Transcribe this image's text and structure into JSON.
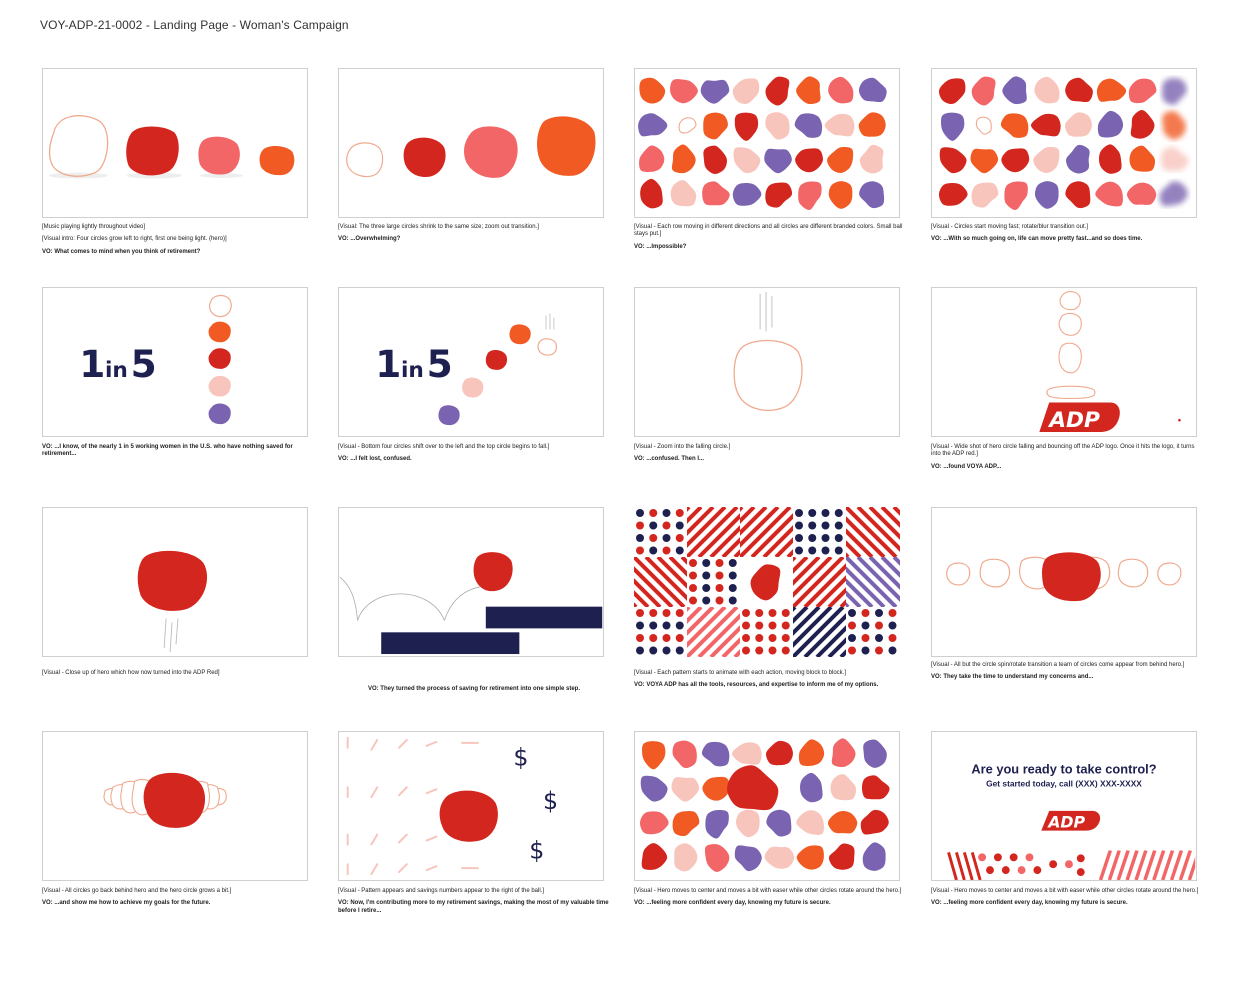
{
  "document": {
    "title": "VOY-ADP-21-0002 - Landing Page - Woman's Campaign"
  },
  "colors": {
    "red": "#d3261f",
    "orange": "#f15a22",
    "coral": "#f26668",
    "pink": "#f8c5bd",
    "purple": "#7a63b0",
    "navy": "#1e2050",
    "outline": "#f0a98e"
  },
  "frames": [
    {
      "lines": [
        "[Music playing lightly throughout video]",
        "[Visual intro: Four circles grow left to right, first one being light. (hero)]"
      ],
      "vo": "VO: What comes to mind when you think of retirement?"
    },
    {
      "lines": [
        "[Visual: The three large circles shrink to the same size; zoom out transition.]"
      ],
      "vo": "VO: ...Overwhelming?"
    },
    {
      "lines": [
        "[Visual - Each row moving in different directions and all circles are different branded colors. Small ball stays put.]"
      ],
      "vo": "VO: ...Impossible?"
    },
    {
      "lines": [
        "[Visual - Circles start moving fast; rotate/blur transition out.]"
      ],
      "vo": "VO: ...With so much going on, life can move pretty fast...and so does time."
    },
    {
      "lines": [],
      "vo": "VO: ...I know, of the nearly 1 in 5 working women in the U.S. who have nothing saved for retirement...",
      "big": {
        "one": "1",
        "in": "in",
        "five": "5"
      }
    },
    {
      "lines": [
        "[Visual - Bottom four circles shift over to the left and the top circle begins to fall.]"
      ],
      "vo": "VO: ...I felt lost, confused.",
      "big": {
        "one": "1",
        "in": "in",
        "five": "5"
      }
    },
    {
      "lines": [
        "[Visual - Zoom into the falling circle.]"
      ],
      "vo": "VO: ...confused. Then I..."
    },
    {
      "lines": [
        "[Visual - Wide shot of hero circle falling and bouncing off the ADP logo. Once it hits the logo, it turns into the ADP red.]"
      ],
      "vo": "VO: ...found VOYA ADP...",
      "logo": "ADP"
    },
    {
      "lines": [
        "[Visual - Close up of hero which how now turned into the ADP Red]"
      ],
      "vo": ""
    },
    {
      "lines": [],
      "vo": "VO: They turned the process of saving for retirement into one simple step."
    },
    {
      "lines": [
        "[Visual - Each pattern starts to animate with each action, moving block to block.]"
      ],
      "vo": "VO: VOYA ADP has all the tools, resources, and expertise to inform me of my options."
    },
    {
      "lines": [
        "[Visual - All but the circle spin/rotate transition a team of circles come appear from behind hero.]"
      ],
      "vo": "VO: They take the time to understand my concerns and..."
    },
    {
      "lines": [
        "[Visual - All circles go back behind hero and the hero circle grows a bit.]"
      ],
      "vo": "VO: ...and show me how to achieve my goals for the future."
    },
    {
      "lines": [
        "[Visual - Pattern appears and savings numbers appear to the right of the ball.]"
      ],
      "vo": "VO: Now, I'm contributing more to my retirement savings, making the most of my valuable time before I retire...",
      "dollar": "$"
    },
    {
      "lines": [
        "[Visual - Hero moves to center and moves a bit with easer while other circles rotate around the hero.]"
      ],
      "vo": "VO: ...feeling more confident every day, knowing my future is secure."
    },
    {
      "lines": [
        "[Visual - Hero moves to center and moves a bit with easer while other circles rotate around the hero.]"
      ],
      "vo": "VO: ...feeling more confident every day, knowing my future is secure.",
      "headline": "Are you ready to take control?",
      "subline": "Get started today, call (XXX) XXX-XXXX",
      "logo": "ADP"
    }
  ]
}
